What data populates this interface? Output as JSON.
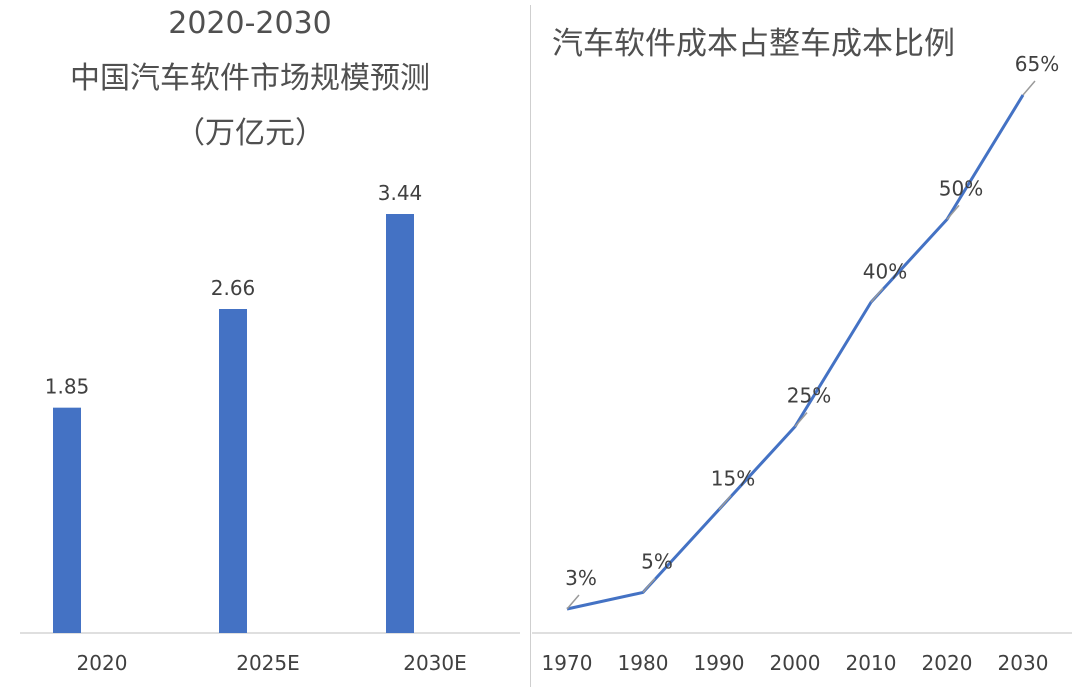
{
  "chart_data": [
    {
      "type": "bar",
      "title_lines": [
        "2020-2030",
        "中国汽车软件市场规模预测",
        "（万亿元）"
      ],
      "categories": [
        "2020",
        "2025E",
        "2030E"
      ],
      "values": [
        1.85,
        2.66,
        3.44
      ],
      "data_labels": [
        "1.85",
        "2.66",
        "3.44"
      ],
      "ylim": [
        0,
        3.44
      ],
      "grid": false,
      "legend": "none",
      "color": "#4472C4"
    },
    {
      "type": "line",
      "title": "汽车软件成本占整车成本比例",
      "x": [
        "1970",
        "1980",
        "1990",
        "2000",
        "2010",
        "2020",
        "2030"
      ],
      "values": [
        3,
        5,
        15,
        25,
        40,
        50,
        65
      ],
      "data_labels": [
        "3%",
        "5%",
        "15%",
        "25%",
        "40%",
        "50%",
        "65%"
      ],
      "unit": "%",
      "grid": false,
      "legend": "none",
      "color": "#4472C4"
    }
  ]
}
